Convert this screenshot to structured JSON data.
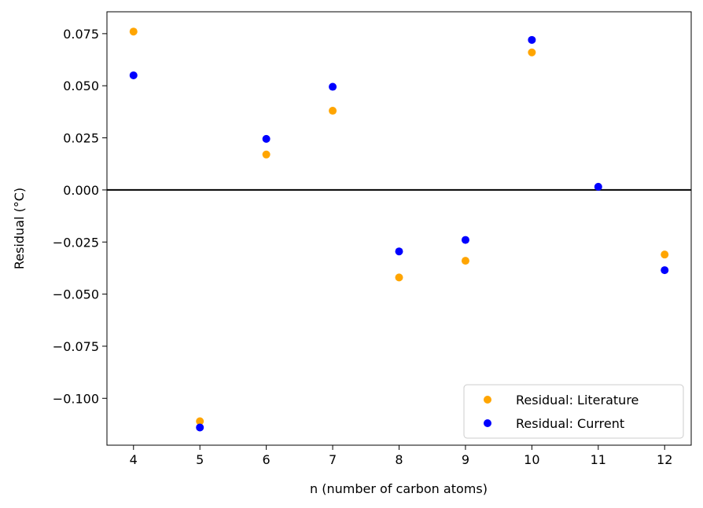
{
  "chart_data": {
    "type": "scatter",
    "title": "",
    "xlabel": "n (number of carbon atoms)",
    "ylabel": "Residual (°C)",
    "xlim": [
      3.6,
      12.4
    ],
    "ylim": [
      -0.1225,
      0.0855
    ],
    "xticks": [
      4,
      5,
      6,
      7,
      8,
      9,
      10,
      11,
      12
    ],
    "xtick_labels": [
      "4",
      "5",
      "6",
      "7",
      "8",
      "9",
      "10",
      "11",
      "12"
    ],
    "yticks": [
      -0.1,
      -0.075,
      -0.05,
      -0.025,
      0.0,
      0.025,
      0.05,
      0.075
    ],
    "ytick_labels": [
      "−0.100",
      "−0.075",
      "−0.050",
      "−0.025",
      "0.000",
      "0.025",
      "0.050",
      "0.075"
    ],
    "reference_line_y": 0.0,
    "grid": false,
    "legend_position": "lower-right",
    "series": [
      {
        "name": "Residual: Literature",
        "color": "#FFA500",
        "x": [
          4,
          5,
          6,
          7,
          8,
          9,
          10,
          12
        ],
        "y": [
          0.076,
          -0.111,
          0.017,
          0.038,
          -0.042,
          -0.034,
          0.066,
          -0.031
        ]
      },
      {
        "name": "Residual: Current",
        "color": "#0000FF",
        "x": [
          4,
          5,
          6,
          7,
          8,
          9,
          10,
          11,
          12
        ],
        "y": [
          0.055,
          -0.114,
          0.0245,
          0.0495,
          -0.0295,
          -0.024,
          0.072,
          0.0015,
          -0.0385
        ]
      }
    ]
  }
}
